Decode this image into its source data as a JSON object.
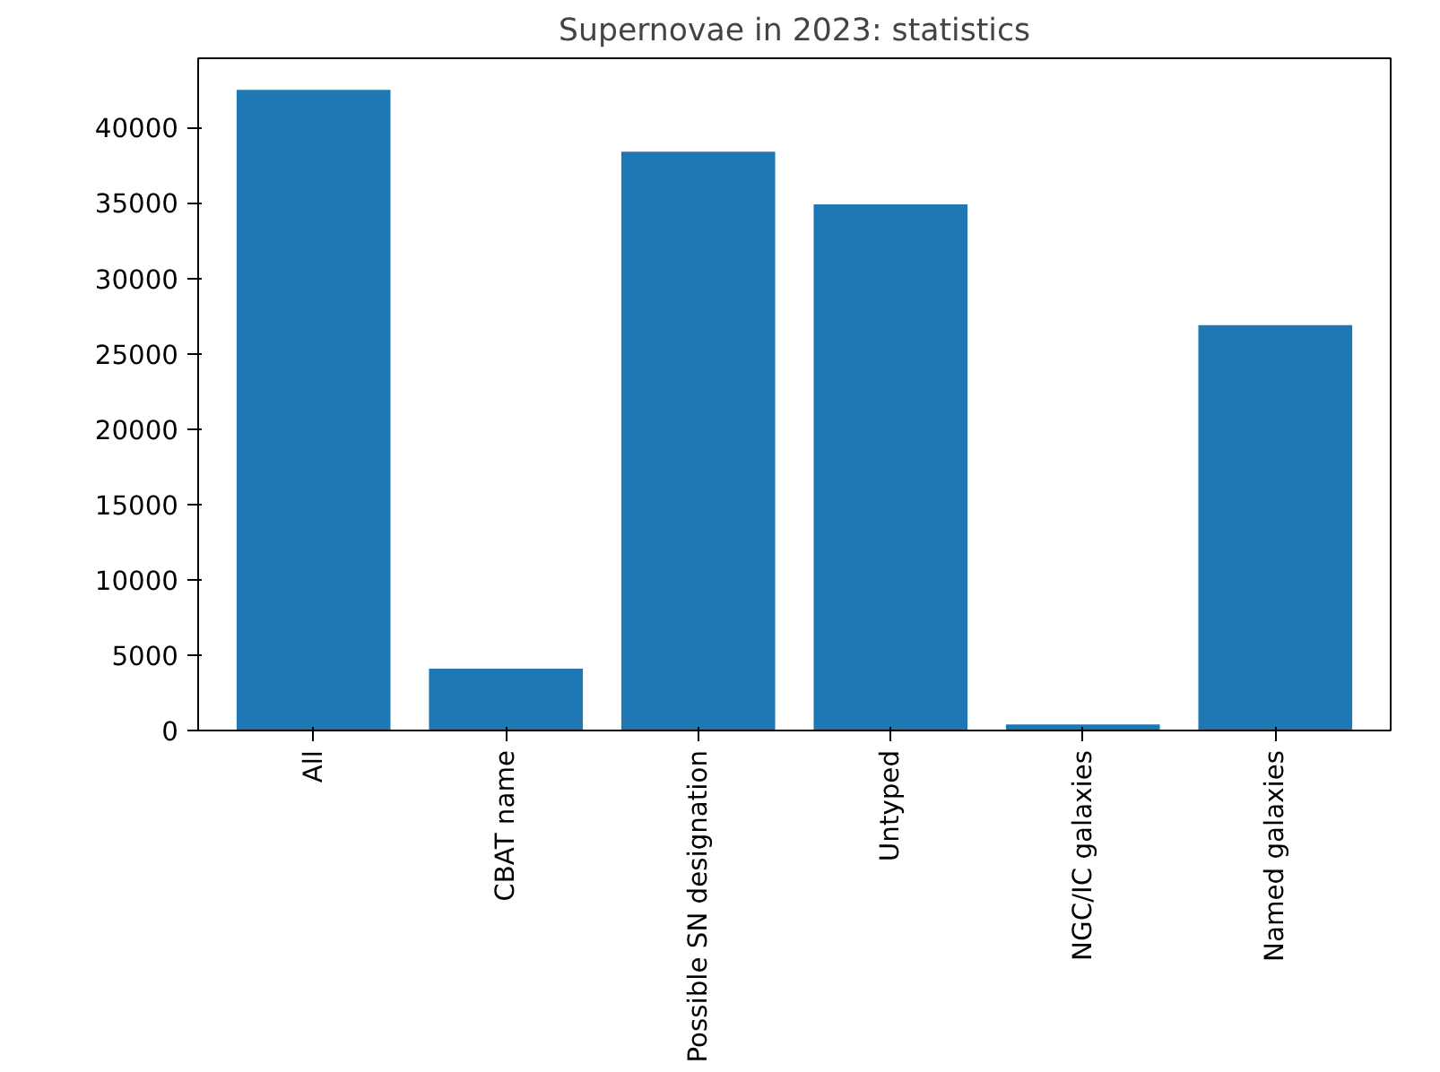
{
  "chart_data": {
    "type": "bar",
    "title": "Supernovae in 2023: statistics",
    "categories": [
      "All",
      "CBAT name",
      "Possible SN designation",
      "Untyped",
      "NGC/IC galaxies",
      "Named galaxies"
    ],
    "values": [
      42500,
      4100,
      38400,
      34900,
      400,
      26900
    ],
    "color": "#1f77b4",
    "ylim": [
      0,
      44600
    ],
    "yticks": [
      0,
      5000,
      10000,
      15000,
      20000,
      25000,
      30000,
      35000,
      40000
    ],
    "grid": false
  }
}
